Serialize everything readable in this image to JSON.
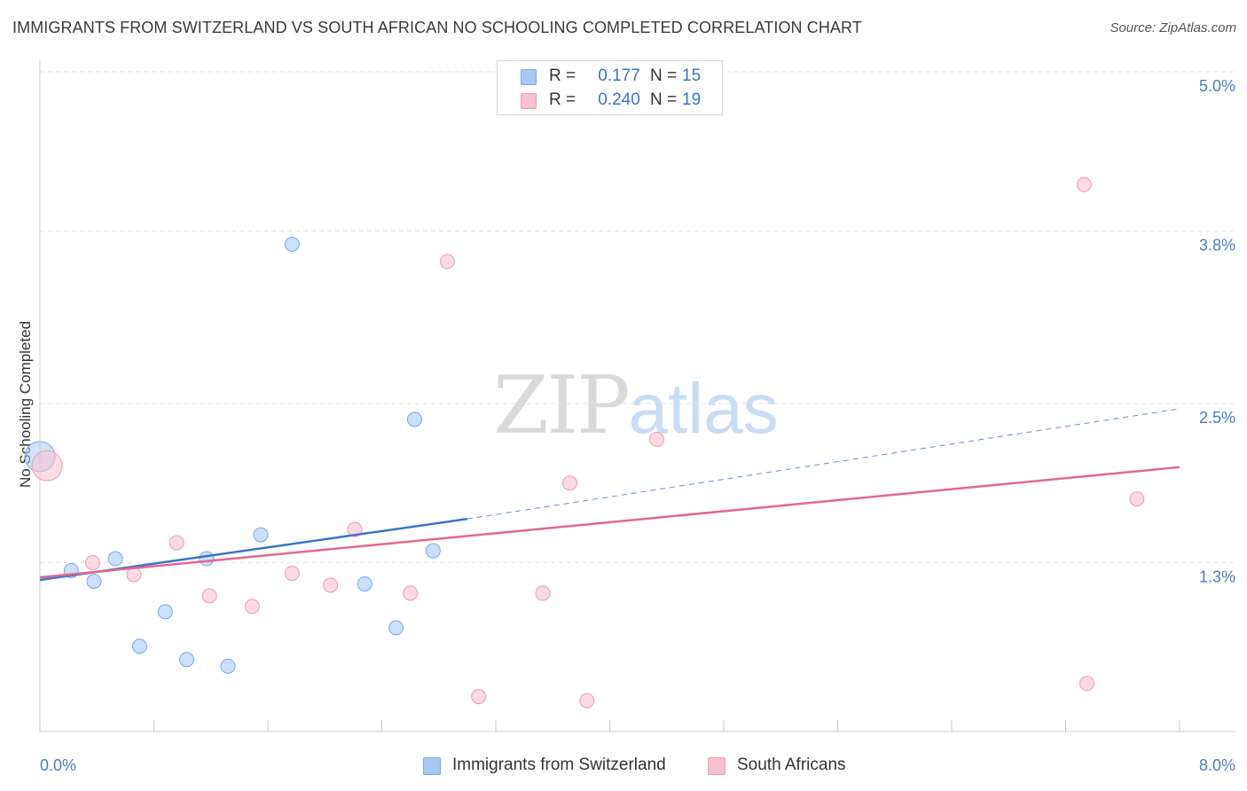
{
  "header": {
    "title": "IMMIGRANTS FROM SWITZERLAND VS SOUTH AFRICAN NO SCHOOLING COMPLETED CORRELATION CHART",
    "source": "Source: ZipAtlas.com"
  },
  "watermark": {
    "zip": "ZIP",
    "atlas": "atlas"
  },
  "stats": [
    {
      "r_label": "R =",
      "r_value": "0.177",
      "n_label": "N =",
      "n_value": "15",
      "color": "#a9c9f3",
      "border": "#7aa8e6"
    },
    {
      "r_label": "R =",
      "r_value": "0.240",
      "n_label": "N =",
      "n_value": "19",
      "color": "#f7c2d0",
      "border": "#ee9ab1"
    }
  ],
  "legend": [
    {
      "label": "Immigrants from Switzerland",
      "color": "#a9c9f3",
      "border": "#7aa8e6"
    },
    {
      "label": "South Africans",
      "color": "#f7c2d0",
      "border": "#ee9ab1"
    }
  ],
  "chart_data": {
    "type": "scatter",
    "title": "IMMIGRANTS FROM SWITZERLAND VS SOUTH AFRICAN NO SCHOOLING COMPLETED CORRELATION CHART",
    "xlabel": "",
    "ylabel": "No Schooling Completed",
    "xlim": [
      0,
      8.0
    ],
    "ylim": [
      0,
      5.0
    ],
    "x_tick_labels": [
      "0.0%",
      "8.0%"
    ],
    "y_ticks": [
      1.3,
      2.5,
      3.8,
      5.0
    ],
    "y_tick_labels": [
      "1.3%",
      "2.5%",
      "3.8%",
      "5.0%"
    ],
    "grid": true,
    "colors": {
      "blue": "#3b73c9",
      "pink": "#e2688f"
    },
    "series": [
      {
        "name": "Immigrants from Switzerland",
        "color": "#a9c9f3",
        "stroke": "#7aa8e6",
        "points": [
          {
            "x": 0.0,
            "y": 2.1,
            "big": true
          },
          {
            "x": 0.22,
            "y": 1.24
          },
          {
            "x": 0.38,
            "y": 1.16
          },
          {
            "x": 0.53,
            "y": 1.33
          },
          {
            "x": 0.7,
            "y": 0.67
          },
          {
            "x": 0.88,
            "y": 0.93
          },
          {
            "x": 1.03,
            "y": 0.57
          },
          {
            "x": 1.17,
            "y": 1.33
          },
          {
            "x": 1.32,
            "y": 0.52
          },
          {
            "x": 1.55,
            "y": 1.51
          },
          {
            "x": 1.77,
            "y": 3.7
          },
          {
            "x": 2.28,
            "y": 1.14
          },
          {
            "x": 2.5,
            "y": 0.81
          },
          {
            "x": 2.63,
            "y": 2.38
          },
          {
            "x": 2.76,
            "y": 1.39
          }
        ],
        "trend": {
          "x0": 0.0,
          "y0": 1.17,
          "x1": 3.0,
          "y1": 1.63,
          "dash_to_x": 8.0,
          "dash_to_y": 2.46
        }
      },
      {
        "name": "South Africans",
        "color": "#f7c2d0",
        "stroke": "#ee9ab1",
        "points": [
          {
            "x": 0.05,
            "y": 2.03,
            "big": true
          },
          {
            "x": 0.37,
            "y": 1.3
          },
          {
            "x": 0.66,
            "y": 1.21
          },
          {
            "x": 0.96,
            "y": 1.45
          },
          {
            "x": 1.19,
            "y": 1.05
          },
          {
            "x": 1.49,
            "y": 0.97
          },
          {
            "x": 1.77,
            "y": 1.22
          },
          {
            "x": 2.04,
            "y": 1.13
          },
          {
            "x": 2.21,
            "y": 1.55
          },
          {
            "x": 2.6,
            "y": 1.07
          },
          {
            "x": 2.86,
            "y": 3.57
          },
          {
            "x": 3.08,
            "y": 0.29
          },
          {
            "x": 3.53,
            "y": 1.07
          },
          {
            "x": 3.72,
            "y": 1.9
          },
          {
            "x": 3.84,
            "y": 0.26
          },
          {
            "x": 4.33,
            "y": 2.23
          },
          {
            "x": 7.33,
            "y": 4.15
          },
          {
            "x": 7.35,
            "y": 0.39
          },
          {
            "x": 7.7,
            "y": 1.78
          }
        ],
        "trend": {
          "x0": 0.0,
          "y0": 1.19,
          "x1": 8.0,
          "y1": 2.02
        }
      }
    ]
  }
}
